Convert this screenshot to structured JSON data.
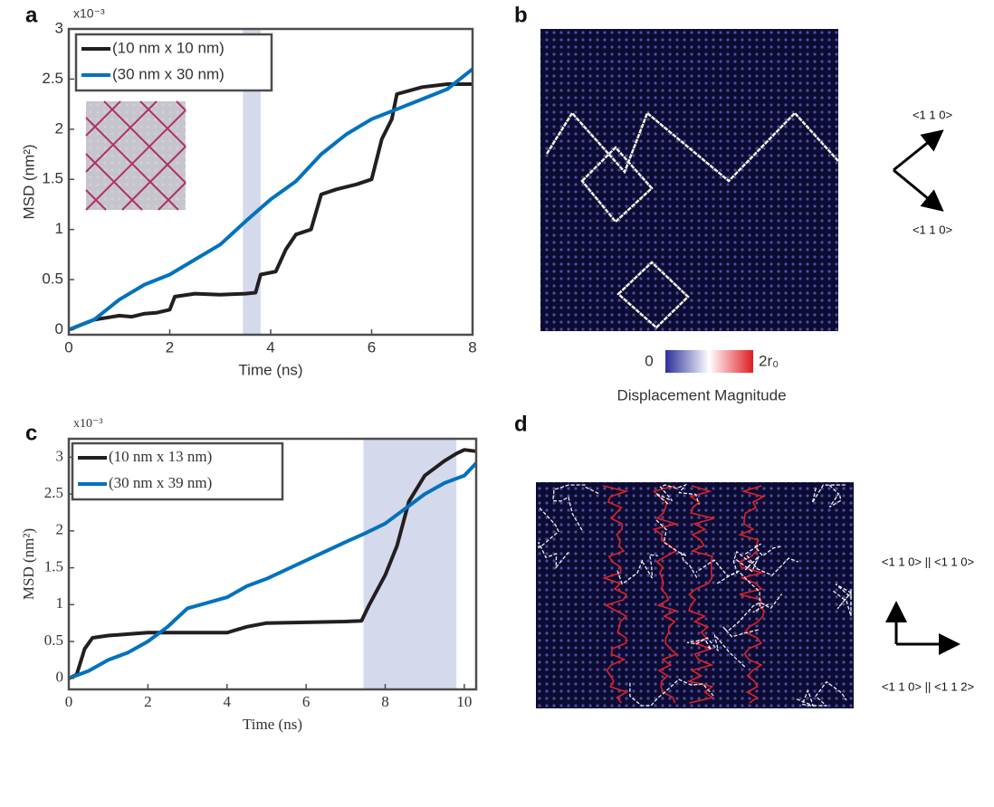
{
  "panel_labels": [
    "a",
    "b",
    "c",
    "d"
  ],
  "chart_data": [
    {
      "type": "line",
      "xlabel": "Time (ns)",
      "ylabel": "MSD (nm²)",
      "y_exponent": "x10⁻³",
      "xlim": [
        0,
        8
      ],
      "ylim": [
        -0.05,
        3
      ],
      "xticks": [
        0,
        2,
        4,
        6,
        8
      ],
      "yticks": [
        0,
        0.5,
        1,
        1.5,
        2,
        2.5,
        3
      ],
      "shade": [
        3.45,
        3.8
      ],
      "shade_color": "#d5d9ec",
      "legend": "upper left",
      "series": [
        {
          "name": "(10 nm x 10 nm)",
          "color": "#231f20",
          "x": [
            0,
            0.25,
            0.5,
            0.75,
            1,
            1.25,
            1.5,
            1.75,
            2,
            2.1,
            2.5,
            3,
            3.5,
            3.7,
            3.8,
            4.1,
            4.3,
            4.5,
            4.8,
            5,
            5.3,
            5.7,
            6,
            6.2,
            6.4,
            6.5,
            7,
            7.5,
            8
          ],
          "values": [
            0,
            0.05,
            0.1,
            0.12,
            0.14,
            0.13,
            0.16,
            0.17,
            0.2,
            0.33,
            0.36,
            0.35,
            0.36,
            0.37,
            0.55,
            0.58,
            0.8,
            0.95,
            1,
            1.35,
            1.4,
            1.45,
            1.5,
            1.9,
            2.1,
            2.35,
            2.42,
            2.45,
            2.45
          ]
        },
        {
          "name": "(30 nm x 30 nm)",
          "color": "#0072bd",
          "x": [
            0,
            0.5,
            1,
            1.5,
            2,
            2.5,
            3,
            3.5,
            4,
            4.5,
            5,
            5.5,
            6,
            6.5,
            7,
            7.5,
            8
          ],
          "values": [
            0,
            0.1,
            0.3,
            0.45,
            0.55,
            0.7,
            0.85,
            1.08,
            1.3,
            1.48,
            1.75,
            1.95,
            2.1,
            2.2,
            2.3,
            2.4,
            2.6
          ]
        }
      ]
    },
    {
      "type": "line",
      "xlabel": "Time (ns)",
      "ylabel": "MSD (nm²)",
      "y_exponent": "x10⁻³",
      "xlim": [
        0,
        10.3
      ],
      "ylim": [
        -0.15,
        3.25
      ],
      "xticks": [
        0,
        2,
        4,
        6,
        8,
        10
      ],
      "yticks": [
        0,
        0.5,
        1,
        1.5,
        2,
        2.5,
        3
      ],
      "shade": [
        7.45,
        9.8
      ],
      "shade_color": "#d5d9ec",
      "legend": "upper left",
      "series": [
        {
          "name": "(10 nm x 13 nm)",
          "color": "#231f20",
          "x": [
            0,
            0.2,
            0.4,
            0.6,
            1,
            1.5,
            2,
            3,
            4,
            4.5,
            5,
            6,
            7,
            7.4,
            7.6,
            8,
            8.3,
            8.6,
            9,
            9.5,
            9.8,
            10,
            10.3
          ],
          "values": [
            0,
            0.05,
            0.4,
            0.55,
            0.58,
            0.6,
            0.62,
            0.62,
            0.62,
            0.7,
            0.75,
            0.76,
            0.77,
            0.78,
            1,
            1.4,
            1.8,
            2.4,
            2.75,
            2.95,
            3.05,
            3.1,
            3.08
          ]
        },
        {
          "name": "(30 nm x 39 nm)",
          "color": "#0072bd",
          "x": [
            0,
            0.5,
            1,
            1.5,
            2,
            2.5,
            3,
            4,
            4.5,
            5,
            6,
            7,
            7.5,
            8,
            8.5,
            9,
            9.5,
            10,
            10.3
          ],
          "values": [
            0,
            0.1,
            0.25,
            0.35,
            0.5,
            0.7,
            0.95,
            1.1,
            1.25,
            1.35,
            1.6,
            1.85,
            1.97,
            2.1,
            2.3,
            2.5,
            2.65,
            2.75,
            2.92
          ]
        }
      ]
    }
  ],
  "snapshot_b": {
    "colorbar_min": "0",
    "colorbar_max": "2r₀",
    "colorbar_title": "Displacement Magnitude",
    "directions": [
      "<1 1 0>",
      "<1 1 0>"
    ]
  },
  "snapshot_d": {
    "directions": [
      "<1 1 0> || <1 1 0>",
      "<1 1 0> || <1 1 2>"
    ]
  }
}
